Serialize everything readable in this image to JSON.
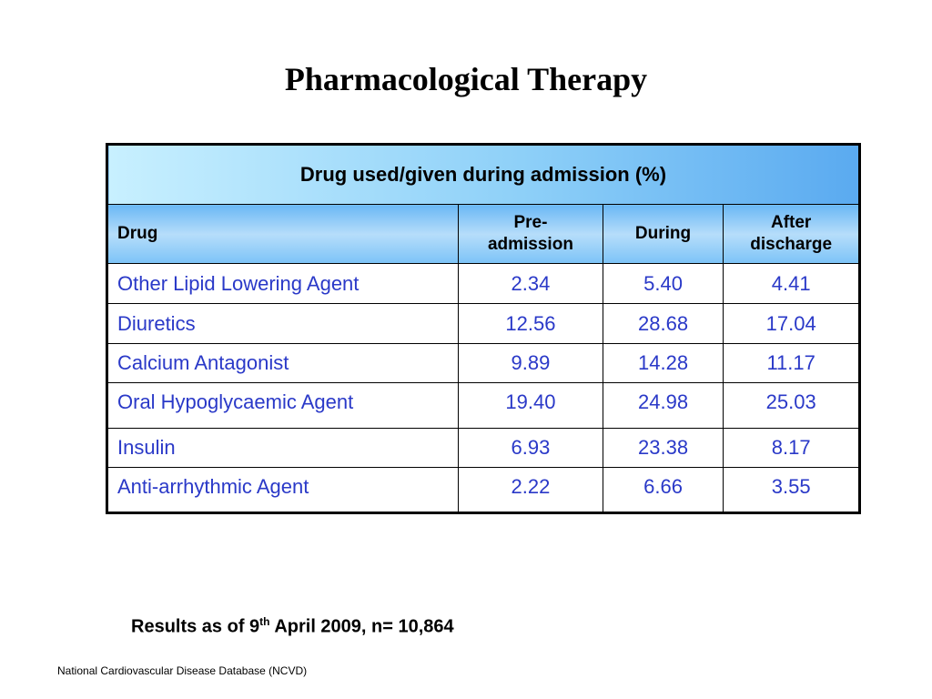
{
  "title": "Pharmacological Therapy",
  "table": {
    "caption": "Drug used/given during admission (%)",
    "headers": {
      "drug": "Drug",
      "pre_line1": "Pre-",
      "pre_line2": "admission",
      "during": "During",
      "after_line1": "After",
      "after_line2": "discharge"
    },
    "rows": [
      {
        "drug": "Other Lipid Lowering Agent",
        "pre": "2.34",
        "during": "5.40",
        "after": "4.41"
      },
      {
        "drug": "Diuretics",
        "pre": "12.56",
        "during": "28.68",
        "after": "17.04"
      },
      {
        "drug": "Calcium Antagonist",
        "pre": "9.89",
        "during": "14.28",
        "after": "11.17"
      },
      {
        "drug": "Oral Hypoglycaemic Agent",
        "pre": "19.40",
        "during": "24.98",
        "after": "25.03"
      },
      {
        "drug": "Insulin",
        "pre": "6.93",
        "during": "23.38",
        "after": "8.17"
      },
      {
        "drug": "Anti-arrhythmic Agent",
        "pre": "2.22",
        "during": "6.66",
        "after": "3.55"
      }
    ]
  },
  "footnote": {
    "prefix": "Results as of 9",
    "superscript": "th",
    "suffix": " April 2009, n= 10,864"
  },
  "source": "National Cardiovascular Disease Database (NCVD)",
  "colors": {
    "body_text": "#2a39c8",
    "header_gradient_light": "#c8f0ff",
    "header_gradient_dark": "#5aaaf0"
  }
}
